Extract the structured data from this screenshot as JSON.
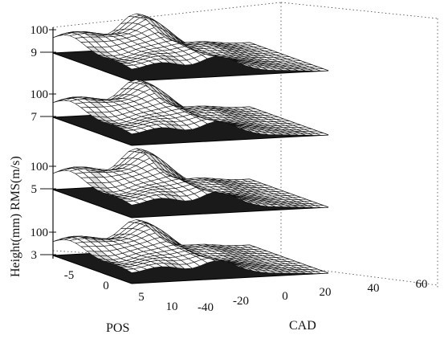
{
  "chart_data": {
    "type": "surface",
    "title": "",
    "ylabel": "Height(mm) RMS(m/s)",
    "xlabel": "POS",
    "zlabel": "CAD",
    "x_axis": {
      "label": "POS",
      "ticks": [
        "-5",
        "0",
        "5",
        "10"
      ],
      "range": [
        -8,
        11
      ]
    },
    "cad_axis": {
      "label": "CAD",
      "ticks": [
        "-40",
        "-20",
        "0",
        "20",
        "40",
        "60"
      ],
      "range": [
        -40,
        60
      ]
    },
    "grid": true,
    "layers": [
      {
        "height_tick": "9",
        "scale_tick": "100",
        "base_height_mm": 9,
        "relief_amplitude": 1.0
      },
      {
        "height_tick": "7",
        "scale_tick": "100",
        "base_height_mm": 7,
        "relief_amplitude": 0.95
      },
      {
        "height_tick": "5",
        "scale_tick": "100",
        "base_height_mm": 5,
        "relief_amplitude": 1.05
      },
      {
        "height_tick": "3",
        "scale_tick": "100",
        "base_height_mm": 3,
        "relief_amplitude": 0.9
      }
    ]
  }
}
